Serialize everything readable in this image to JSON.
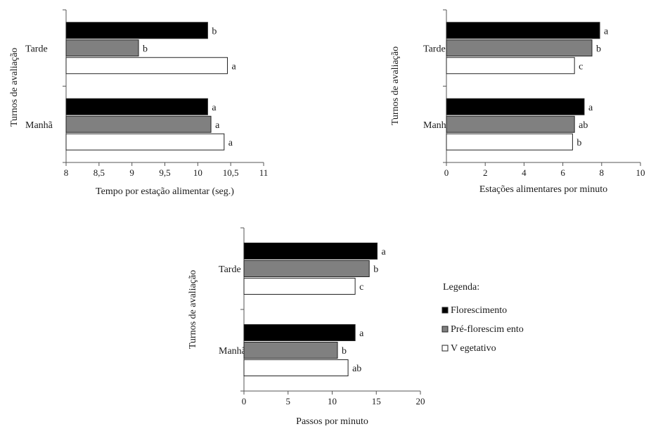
{
  "legend": {
    "title": "Legenda:",
    "items": [
      {
        "label": "Florescimento",
        "color": "#000000"
      },
      {
        "label": "Pré-florescim ento",
        "color": "#808080"
      },
      {
        "label": "V egetativo",
        "color": "#ffffff"
      }
    ]
  },
  "chart_data": [
    {
      "type": "bar",
      "orientation": "horizontal",
      "categories": [
        "Tarde",
        "Manhã"
      ],
      "ylabel": "Turnos de avaliação",
      "xlabel": "Tempo por estação alimentar (seg.)",
      "xlim": [
        8,
        11
      ],
      "xticks": [
        "8",
        "8,5",
        "9",
        "9,5",
        "10",
        "10,5",
        "11"
      ],
      "series": [
        {
          "name": "Florescimento",
          "values": [
            10.15,
            10.15
          ],
          "labels": [
            "b",
            "a"
          ]
        },
        {
          "name": "Pré-florescim ento",
          "values": [
            9.1,
            10.2
          ],
          "labels": [
            "b",
            "a"
          ]
        },
        {
          "name": "V egetativo",
          "values": [
            10.45,
            10.4
          ],
          "labels": [
            "a",
            "a"
          ]
        }
      ],
      "legend": "right",
      "grid": false
    },
    {
      "type": "bar",
      "orientation": "horizontal",
      "categories": [
        "Tarde",
        "Manhã"
      ],
      "ylabel": "Turnos de avaliação",
      "xlabel": "Estações alimentares  por minuto",
      "xlim": [
        0,
        10
      ],
      "xticks": [
        "0",
        "2",
        "4",
        "6",
        "8",
        "10"
      ],
      "series": [
        {
          "name": "Florescimento",
          "values": [
            7.9,
            7.1
          ],
          "labels": [
            "a",
            "a"
          ]
        },
        {
          "name": "Pré-florescim ento",
          "values": [
            7.5,
            6.6
          ],
          "labels": [
            "b",
            "ab"
          ]
        },
        {
          "name": "V egetativo",
          "values": [
            6.6,
            6.5
          ],
          "labels": [
            "c",
            "b"
          ]
        }
      ],
      "legend": "right",
      "grid": false
    },
    {
      "type": "bar",
      "orientation": "horizontal",
      "categories": [
        "Tarde",
        "Manhã"
      ],
      "ylabel": "Turnos de avaliação",
      "xlabel": "Passos por minuto",
      "xlim": [
        0,
        20
      ],
      "xticks": [
        "0",
        "5",
        "10",
        "15",
        "20"
      ],
      "series": [
        {
          "name": "Florescimento",
          "values": [
            15.1,
            12.6
          ],
          "labels": [
            "a",
            "a"
          ]
        },
        {
          "name": "Pré-florescim ento",
          "values": [
            14.2,
            10.6
          ],
          "labels": [
            "b",
            "b"
          ]
        },
        {
          "name": "V egetativo",
          "values": [
            12.6,
            11.8
          ],
          "labels": [
            "c",
            "ab"
          ]
        }
      ],
      "legend": "right",
      "grid": false
    }
  ]
}
